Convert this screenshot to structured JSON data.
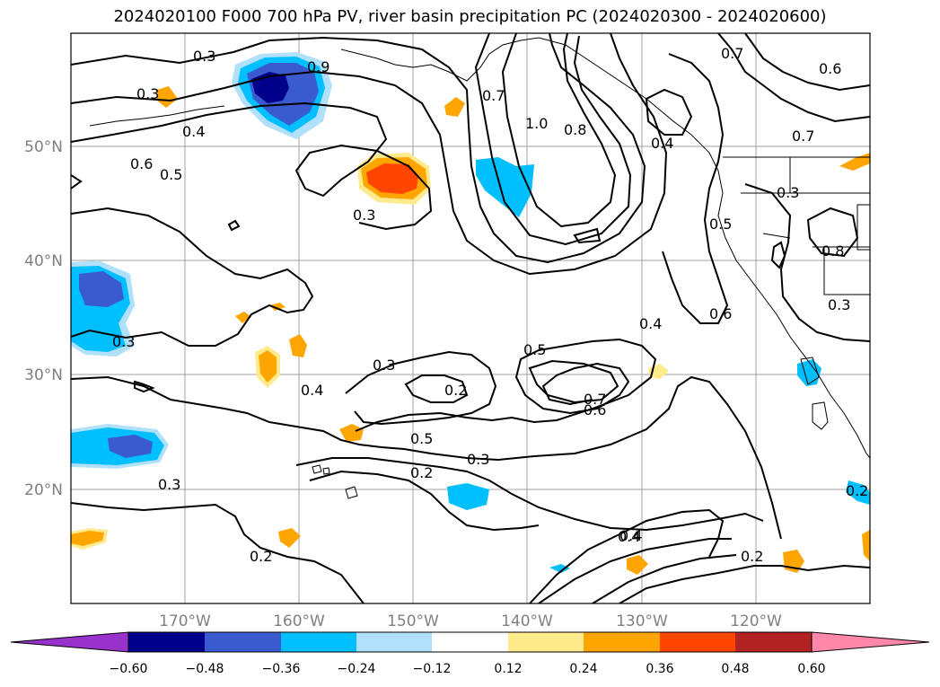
{
  "title": "2024020100 F000 700 hPa PV, river basin precipitation PC (2024020300 - 2024020600)",
  "map": {
    "lon_ticks": [
      "170°W",
      "160°W",
      "150°W",
      "140°W",
      "130°W",
      "120°W"
    ],
    "lat_ticks": [
      "50°N",
      "40°N",
      "30°N",
      "20°N"
    ],
    "lon_values": [
      -170,
      -160,
      -150,
      -140,
      -130,
      -120
    ],
    "lat_values": [
      50,
      40,
      30,
      20
    ],
    "contour_labels": [
      "0.3",
      "0.9",
      "0.3",
      "0.4",
      "0.6",
      "0.5",
      "0.3",
      "0.7",
      "1.0",
      "0.8",
      "0.7",
      "0.6",
      "0.4",
      "0.7",
      "0.3",
      "0.5",
      "0.4",
      "0.6",
      "0.8",
      "0.3",
      "0.3",
      "0.4",
      "0.3",
      "0.2",
      "0.5",
      "0.7",
      "0.6",
      "0.4",
      "0.3",
      "0.5",
      "0.2",
      "0.3",
      "0.2",
      "0.4",
      "0.2",
      "0.2"
    ],
    "colors": {
      "neg_060": "#9932CC",
      "neg_048": "#00008B",
      "neg_036": "#3A5BD0",
      "neg_024": "#00BFFF",
      "neg_012": "#B0E0FA",
      "pos_012": "#FFEA8C",
      "pos_024": "#FFA500",
      "pos_036": "#FF4500",
      "pos_048": "#B22222",
      "pos_060": "#FF88AA"
    }
  },
  "colorbar": {
    "labels": [
      "−0.60",
      "−0.48",
      "−0.36",
      "−0.24",
      "−0.12",
      "0.12",
      "0.24",
      "0.36",
      "0.48",
      "0.60"
    ],
    "colors": [
      "#9932CC",
      "#00008B",
      "#3A5BD0",
      "#00BFFF",
      "#B0E0FA",
      "#FFFFFF",
      "#FFEA8C",
      "#FFA500",
      "#FF4500",
      "#B22222",
      "#FF88AA"
    ]
  }
}
